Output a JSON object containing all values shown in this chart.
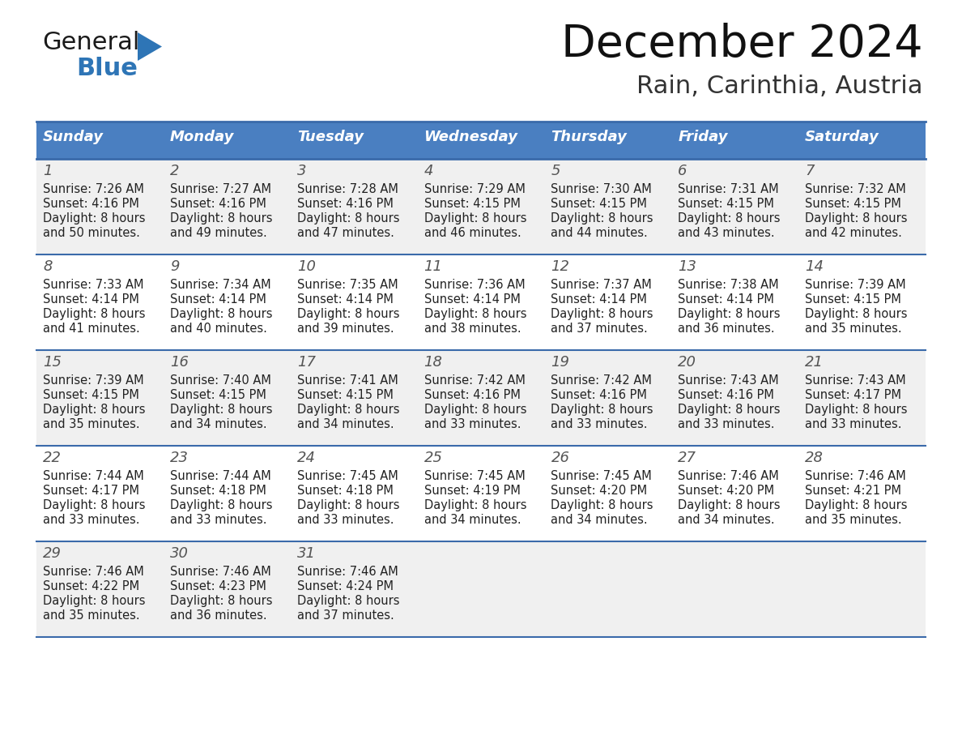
{
  "title": "December 2024",
  "subtitle": "Rain, Carinthia, Austria",
  "days_of_week": [
    "Sunday",
    "Monday",
    "Tuesday",
    "Wednesday",
    "Thursday",
    "Friday",
    "Saturday"
  ],
  "header_bg": "#4a7fc1",
  "header_text_color": "#FFFFFF",
  "row_bg_light": "#F0F0F0",
  "row_bg_white": "#FFFFFF",
  "cell_text_color": "#222222",
  "grid_line_color": "#3a6aaa",
  "calendar_data": [
    [
      {
        "day": 1,
        "sunrise": "7:26 AM",
        "sunset": "4:16 PM",
        "daylight": "8 hours and 50 minutes."
      },
      {
        "day": 2,
        "sunrise": "7:27 AM",
        "sunset": "4:16 PM",
        "daylight": "8 hours and 49 minutes."
      },
      {
        "day": 3,
        "sunrise": "7:28 AM",
        "sunset": "4:16 PM",
        "daylight": "8 hours and 47 minutes."
      },
      {
        "day": 4,
        "sunrise": "7:29 AM",
        "sunset": "4:15 PM",
        "daylight": "8 hours and 46 minutes."
      },
      {
        "day": 5,
        "sunrise": "7:30 AM",
        "sunset": "4:15 PM",
        "daylight": "8 hours and 44 minutes."
      },
      {
        "day": 6,
        "sunrise": "7:31 AM",
        "sunset": "4:15 PM",
        "daylight": "8 hours and 43 minutes."
      },
      {
        "day": 7,
        "sunrise": "7:32 AM",
        "sunset": "4:15 PM",
        "daylight": "8 hours and 42 minutes."
      }
    ],
    [
      {
        "day": 8,
        "sunrise": "7:33 AM",
        "sunset": "4:14 PM",
        "daylight": "8 hours and 41 minutes."
      },
      {
        "day": 9,
        "sunrise": "7:34 AM",
        "sunset": "4:14 PM",
        "daylight": "8 hours and 40 minutes."
      },
      {
        "day": 10,
        "sunrise": "7:35 AM",
        "sunset": "4:14 PM",
        "daylight": "8 hours and 39 minutes."
      },
      {
        "day": 11,
        "sunrise": "7:36 AM",
        "sunset": "4:14 PM",
        "daylight": "8 hours and 38 minutes."
      },
      {
        "day": 12,
        "sunrise": "7:37 AM",
        "sunset": "4:14 PM",
        "daylight": "8 hours and 37 minutes."
      },
      {
        "day": 13,
        "sunrise": "7:38 AM",
        "sunset": "4:14 PM",
        "daylight": "8 hours and 36 minutes."
      },
      {
        "day": 14,
        "sunrise": "7:39 AM",
        "sunset": "4:15 PM",
        "daylight": "8 hours and 35 minutes."
      }
    ],
    [
      {
        "day": 15,
        "sunrise": "7:39 AM",
        "sunset": "4:15 PM",
        "daylight": "8 hours and 35 minutes."
      },
      {
        "day": 16,
        "sunrise": "7:40 AM",
        "sunset": "4:15 PM",
        "daylight": "8 hours and 34 minutes."
      },
      {
        "day": 17,
        "sunrise": "7:41 AM",
        "sunset": "4:15 PM",
        "daylight": "8 hours and 34 minutes."
      },
      {
        "day": 18,
        "sunrise": "7:42 AM",
        "sunset": "4:16 PM",
        "daylight": "8 hours and 33 minutes."
      },
      {
        "day": 19,
        "sunrise": "7:42 AM",
        "sunset": "4:16 PM",
        "daylight": "8 hours and 33 minutes."
      },
      {
        "day": 20,
        "sunrise": "7:43 AM",
        "sunset": "4:16 PM",
        "daylight": "8 hours and 33 minutes."
      },
      {
        "day": 21,
        "sunrise": "7:43 AM",
        "sunset": "4:17 PM",
        "daylight": "8 hours and 33 minutes."
      }
    ],
    [
      {
        "day": 22,
        "sunrise": "7:44 AM",
        "sunset": "4:17 PM",
        "daylight": "8 hours and 33 minutes."
      },
      {
        "day": 23,
        "sunrise": "7:44 AM",
        "sunset": "4:18 PM",
        "daylight": "8 hours and 33 minutes."
      },
      {
        "day": 24,
        "sunrise": "7:45 AM",
        "sunset": "4:18 PM",
        "daylight": "8 hours and 33 minutes."
      },
      {
        "day": 25,
        "sunrise": "7:45 AM",
        "sunset": "4:19 PM",
        "daylight": "8 hours and 34 minutes."
      },
      {
        "day": 26,
        "sunrise": "7:45 AM",
        "sunset": "4:20 PM",
        "daylight": "8 hours and 34 minutes."
      },
      {
        "day": 27,
        "sunrise": "7:46 AM",
        "sunset": "4:20 PM",
        "daylight": "8 hours and 34 minutes."
      },
      {
        "day": 28,
        "sunrise": "7:46 AM",
        "sunset": "4:21 PM",
        "daylight": "8 hours and 35 minutes."
      }
    ],
    [
      {
        "day": 29,
        "sunrise": "7:46 AM",
        "sunset": "4:22 PM",
        "daylight": "8 hours and 35 minutes."
      },
      {
        "day": 30,
        "sunrise": "7:46 AM",
        "sunset": "4:23 PM",
        "daylight": "8 hours and 36 minutes."
      },
      {
        "day": 31,
        "sunrise": "7:46 AM",
        "sunset": "4:24 PM",
        "daylight": "8 hours and 37 minutes."
      },
      null,
      null,
      null,
      null
    ]
  ],
  "logo_general_color": "#1a1a1a",
  "logo_blue_color": "#2E75B6",
  "logo_triangle_color": "#2E75B6",
  "fig_width": 11.88,
  "fig_height": 9.18,
  "fig_dpi": 100
}
